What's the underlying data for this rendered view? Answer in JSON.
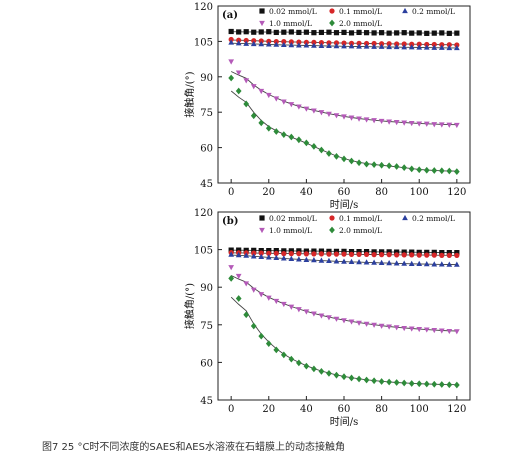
{
  "caption": "图7 25 °C时不同浓度的SAES和AES水溶液在石蜡膜上的动态接触角",
  "colors": {
    "s002": "#111111",
    "s01": "#d62728",
    "s02": "#2b3f9e",
    "s10": "#b45ab8",
    "s20": "#2e8b3a",
    "fit": "#444444"
  },
  "chart_data": [
    {
      "type": "scatter",
      "panel_label": "(a)",
      "xlabel": "时间/s",
      "ylabel": "接触角/(°)",
      "xlim": [
        -7,
        127
      ],
      "ylim": [
        45,
        120
      ],
      "xticks": [
        0,
        20,
        40,
        60,
        80,
        100,
        120
      ],
      "yticks": [
        45,
        60,
        75,
        90,
        105,
        120
      ],
      "x": [
        0,
        4,
        8,
        12,
        16,
        20,
        24,
        28,
        32,
        36,
        40,
        44,
        48,
        52,
        56,
        60,
        64,
        68,
        72,
        76,
        80,
        84,
        88,
        92,
        96,
        100,
        104,
        108,
        112,
        116,
        120
      ],
      "legend": [
        "0.02 mmol/L",
        "0.1 mmol/L",
        "0.2 mmol/L",
        "1.0 mmol/L",
        "2.0 mmol/L"
      ],
      "series": [
        {
          "name": "0.02 mmol/L",
          "marker": "square",
          "color": "#111111",
          "values": [
            109.2,
            109.0,
            109.1,
            108.9,
            109.0,
            109.1,
            108.8,
            108.9,
            109.0,
            108.8,
            108.9,
            108.7,
            108.8,
            108.9,
            108.7,
            108.8,
            108.6,
            108.8,
            108.7,
            108.6,
            108.7,
            108.5,
            108.6,
            108.7,
            108.5,
            108.6,
            108.4,
            108.5,
            108.6,
            108.4,
            108.5
          ]
        },
        {
          "name": "0.1 mmol/L",
          "marker": "circle",
          "color": "#d62728",
          "values": [
            105.8,
            105.5,
            105.4,
            105.3,
            105.2,
            105.0,
            104.9,
            104.9,
            104.8,
            104.7,
            104.6,
            104.6,
            104.5,
            104.4,
            104.4,
            104.3,
            104.2,
            104.2,
            104.1,
            104.1,
            104.0,
            104.0,
            103.9,
            103.9,
            103.8,
            103.8,
            103.7,
            103.7,
            103.6,
            103.6,
            103.5
          ]
        },
        {
          "name": "0.2 mmol/L",
          "marker": "triangle-up",
          "color": "#2b3f9e",
          "values": [
            104.5,
            104.2,
            104.0,
            103.9,
            103.8,
            103.7,
            103.6,
            103.5,
            103.4,
            103.3,
            103.3,
            103.2,
            103.1,
            103.1,
            103.0,
            102.9,
            102.9,
            102.8,
            102.8,
            102.7,
            102.7,
            102.6,
            102.6,
            102.5,
            102.5,
            102.4,
            102.4,
            102.3,
            102.3,
            102.2,
            102.2
          ]
        },
        {
          "name": "1.0 mmol/L",
          "marker": "triangle-down",
          "color": "#b45ab8",
          "values": [
            96.5,
            91.8,
            88.5,
            86.0,
            84.0,
            82.3,
            80.8,
            79.5,
            78.4,
            77.4,
            76.5,
            75.7,
            75.0,
            74.3,
            73.7,
            73.2,
            72.7,
            72.3,
            71.9,
            71.6,
            71.3,
            71.0,
            70.8,
            70.6,
            70.4,
            70.2,
            70.1,
            69.9,
            69.8,
            69.7,
            69.6
          ]
        },
        {
          "name": "2.0 mmol/L",
          "marker": "diamond",
          "color": "#2e8b3a",
          "values": [
            89.5,
            84.0,
            78.5,
            73.5,
            70.5,
            68.2,
            66.8,
            65.5,
            64.5,
            63.3,
            62.0,
            60.5,
            59.0,
            57.5,
            56.3,
            55.2,
            54.3,
            53.6,
            53.0,
            52.8,
            52.5,
            52.3,
            52.0,
            51.5,
            51.0,
            50.6,
            50.4,
            50.3,
            50.2,
            50.1,
            49.8
          ]
        }
      ]
    },
    {
      "type": "scatter",
      "panel_label": "(b)",
      "xlabel": "时间/s",
      "ylabel": "接触角/(°)",
      "xlim": [
        -7,
        127
      ],
      "ylim": [
        45,
        120
      ],
      "xticks": [
        0,
        20,
        40,
        60,
        80,
        100,
        120
      ],
      "yticks": [
        45,
        60,
        75,
        90,
        105,
        120
      ],
      "x": [
        0,
        4,
        8,
        12,
        16,
        20,
        24,
        28,
        32,
        36,
        40,
        44,
        48,
        52,
        56,
        60,
        64,
        68,
        72,
        76,
        80,
        84,
        88,
        92,
        96,
        100,
        104,
        108,
        112,
        116,
        120
      ],
      "legend": [
        "0.02 mmol/L",
        "0.1 mmol/L",
        "0.2 mmol/L",
        "1.0 mmol/L",
        "2.0 mmol/L"
      ],
      "series": [
        {
          "name": "0.02 mmol/L",
          "marker": "square",
          "color": "#111111",
          "values": [
            104.8,
            104.8,
            104.7,
            104.7,
            104.6,
            104.6,
            104.6,
            104.5,
            104.5,
            104.5,
            104.4,
            104.4,
            104.4,
            104.3,
            104.3,
            104.3,
            104.2,
            104.2,
            104.2,
            104.1,
            104.1,
            104.1,
            104.0,
            104.0,
            104.0,
            103.9,
            103.9,
            103.9,
            103.8,
            103.8,
            103.8
          ]
        },
        {
          "name": "0.1 mmol/L",
          "marker": "circle",
          "color": "#d62728",
          "values": [
            103.8,
            103.7,
            103.7,
            103.6,
            103.6,
            103.5,
            103.5,
            103.4,
            103.4,
            103.4,
            103.3,
            103.3,
            103.3,
            103.2,
            103.2,
            103.2,
            103.1,
            103.1,
            103.1,
            103.0,
            103.0,
            103.0,
            102.9,
            102.9,
            102.9,
            102.8,
            102.8,
            102.8,
            102.7,
            102.7,
            102.7
          ]
        },
        {
          "name": "0.2 mmol/L",
          "marker": "triangle-up",
          "color": "#2b3f9e",
          "values": [
            103.0,
            102.8,
            102.6,
            102.3,
            102.1,
            101.9,
            101.7,
            101.5,
            101.3,
            101.1,
            100.9,
            100.8,
            100.6,
            100.5,
            100.3,
            100.2,
            100.1,
            100.0,
            99.9,
            99.8,
            99.7,
            99.6,
            99.5,
            99.4,
            99.3,
            99.3,
            99.2,
            99.1,
            99.1,
            99.0,
            99.0
          ]
        },
        {
          "name": "1.0 mmol/L",
          "marker": "triangle-down",
          "color": "#b45ab8",
          "values": [
            98.0,
            94.5,
            91.5,
            89.0,
            87.2,
            85.8,
            84.5,
            83.3,
            82.2,
            81.2,
            80.3,
            79.5,
            78.7,
            78.0,
            77.4,
            76.8,
            76.3,
            75.8,
            75.4,
            75.0,
            74.6,
            74.3,
            74.0,
            73.7,
            73.5,
            73.3,
            73.1,
            72.9,
            72.7,
            72.5,
            72.4
          ]
        },
        {
          "name": "2.0 mmol/L",
          "marker": "diamond",
          "color": "#2e8b3a",
          "values": [
            93.5,
            85.5,
            79.0,
            74.5,
            70.5,
            67.5,
            65.0,
            63.0,
            61.3,
            59.8,
            58.5,
            57.4,
            56.4,
            55.6,
            54.9,
            54.3,
            53.8,
            53.4,
            53.0,
            52.7,
            52.4,
            52.2,
            52.0,
            51.8,
            51.6,
            51.5,
            51.4,
            51.3,
            51.2,
            51.1,
            51.0
          ]
        }
      ]
    }
  ]
}
